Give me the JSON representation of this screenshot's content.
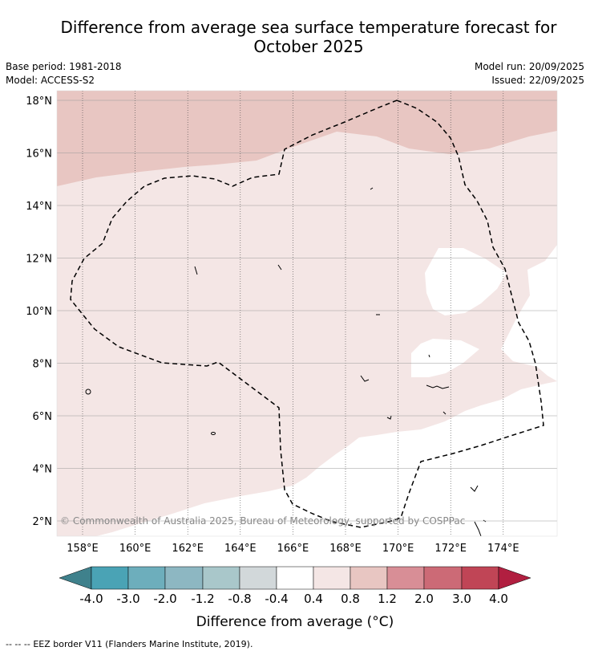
{
  "title": "Difference from average sea surface temperature forecast for October 2025",
  "meta": {
    "base_period": "Base period: 1981-2018",
    "model": "Model: ACCESS-S2",
    "model_run": "Model run: 20/09/2025",
    "issued": "Issued: 22/09/2025"
  },
  "map": {
    "lon_labels": [
      "158°E",
      "160°E",
      "162°E",
      "164°E",
      "166°E",
      "168°E",
      "170°E",
      "172°E",
      "174°E"
    ],
    "lat_labels": [
      "2°N",
      "4°N",
      "6°N",
      "8°N",
      "10°N",
      "12°N",
      "14°N",
      "16°N",
      "18°N"
    ],
    "copyright": "© Commonwealth of Australia 2025, Bureau of Meteorology, supported by COSPPac"
  },
  "colorbar": {
    "ticks": [
      "-4.0",
      "-3.0",
      "-2.0",
      "-1.2",
      "-0.8",
      "-0.4",
      "0.4",
      "0.8",
      "1.2",
      "2.0",
      "3.0",
      "4.0"
    ],
    "colors": [
      "#3f818c",
      "#4aa3b5",
      "#6daebc",
      "#8db7c2",
      "#a9c7ca",
      "#d2d8da",
      "#ffffff",
      "#f4e6e5",
      "#e8c6c2",
      "#d88e96",
      "#cc6a76",
      "#c04556",
      "#b11f40"
    ],
    "label": "Difference from average (°C)"
  },
  "legend": {
    "line_symbol": "--  --  --",
    "text": "EEZ border V11 (Flanders Marine Institute, 2019)."
  }
}
